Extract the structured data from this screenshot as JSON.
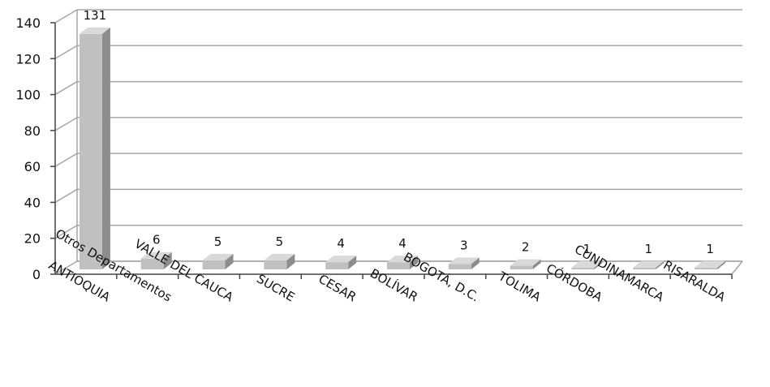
{
  "chart_data": {
    "type": "bar",
    "categories": [
      "ANTIOQUIA",
      "Otros Departamentos",
      "VALLE DEL CAUCA",
      "SUCRE",
      "CESAR",
      "BOLÍVAR",
      "BOGOTÁ, D.C.",
      "TOLIMA",
      "CÓRDOBA",
      "CUNDINAMARCA",
      "RISARALDA"
    ],
    "values": [
      131,
      6,
      5,
      5,
      4,
      4,
      3,
      2,
      1,
      1,
      1
    ],
    "ylim": [
      0,
      140
    ],
    "yticks": [
      0,
      20,
      40,
      60,
      80,
      100,
      120,
      140
    ],
    "grid": true,
    "legend": "none",
    "data_labels": true,
    "style": "3d",
    "colors": {
      "bar_front": "#c0c0c0",
      "bar_side": "#8c8c8c",
      "bar_top": "#d9d9d9",
      "grid": "#a6a6a6"
    }
  }
}
